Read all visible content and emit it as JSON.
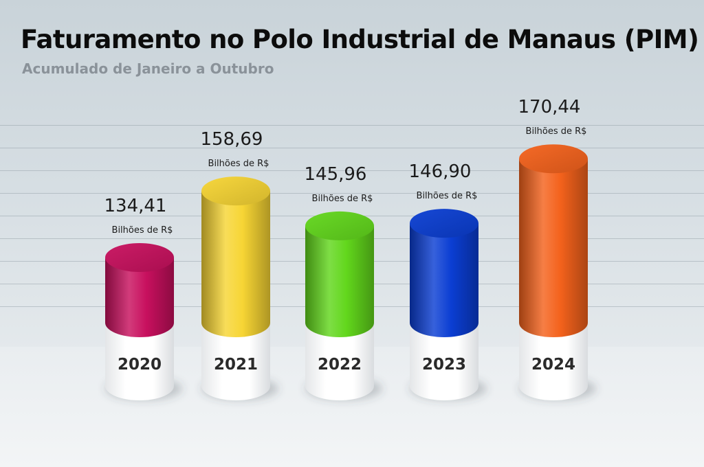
{
  "header": {
    "title": "Faturamento no Polo Industrial de Manaus (PIM)",
    "subtitle": "Acumulado de Janeiro a Outubro"
  },
  "chart_data": {
    "type": "bar",
    "title": "Faturamento no Polo Industrial de Manaus (PIM)",
    "subtitle": "Acumulado de Janeiro a Outubro",
    "categories": [
      "2020",
      "2021",
      "2022",
      "2023",
      "2024"
    ],
    "values": [
      134.41,
      158.69,
      145.96,
      146.9,
      170.44
    ],
    "value_labels": [
      "134,41",
      "158,69",
      "145,96",
      "146,90",
      "170,44"
    ],
    "unit_label": "Bilhões de R$",
    "colors": [
      "#c8105e",
      "#f7d534",
      "#62d71c",
      "#0b3ed3",
      "#f4621c"
    ],
    "grid": true,
    "legend": "none"
  }
}
